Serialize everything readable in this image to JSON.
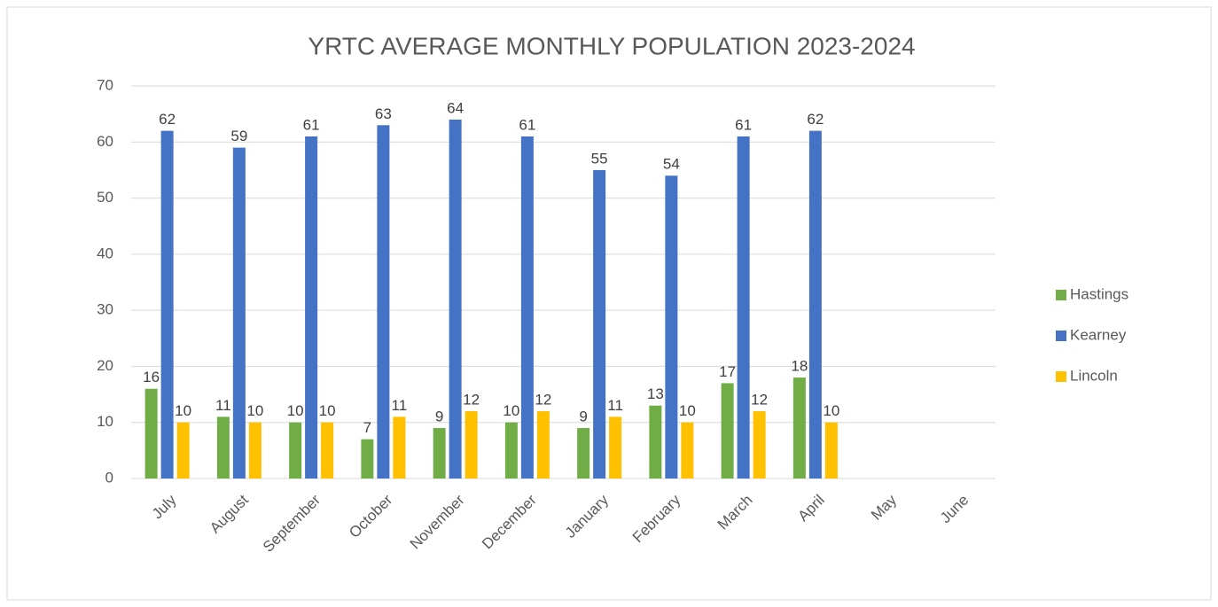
{
  "chart_data": {
    "type": "bar",
    "title": "YRTC AVERAGE MONTHLY POPULATION 2023-2024",
    "categories": [
      "July",
      "August",
      "September",
      "October",
      "November",
      "December",
      "January",
      "February",
      "March",
      "April",
      "May",
      "June"
    ],
    "series": [
      {
        "name": "Hastings",
        "color": "#70ad47",
        "values": [
          16,
          11,
          10,
          7,
          9,
          10,
          9,
          13,
          17,
          18,
          null,
          null
        ]
      },
      {
        "name": "Kearney",
        "color": "#4472c4",
        "values": [
          62,
          59,
          61,
          63,
          64,
          61,
          55,
          54,
          61,
          62,
          null,
          null
        ]
      },
      {
        "name": "Lincoln",
        "color": "#ffc000",
        "values": [
          10,
          10,
          10,
          11,
          12,
          12,
          11,
          10,
          12,
          10,
          null,
          null
        ]
      }
    ],
    "ylim": [
      0,
      70
    ],
    "yticks": [
      0,
      10,
      20,
      30,
      40,
      50,
      60,
      70
    ],
    "grid": true,
    "legend": "right"
  }
}
